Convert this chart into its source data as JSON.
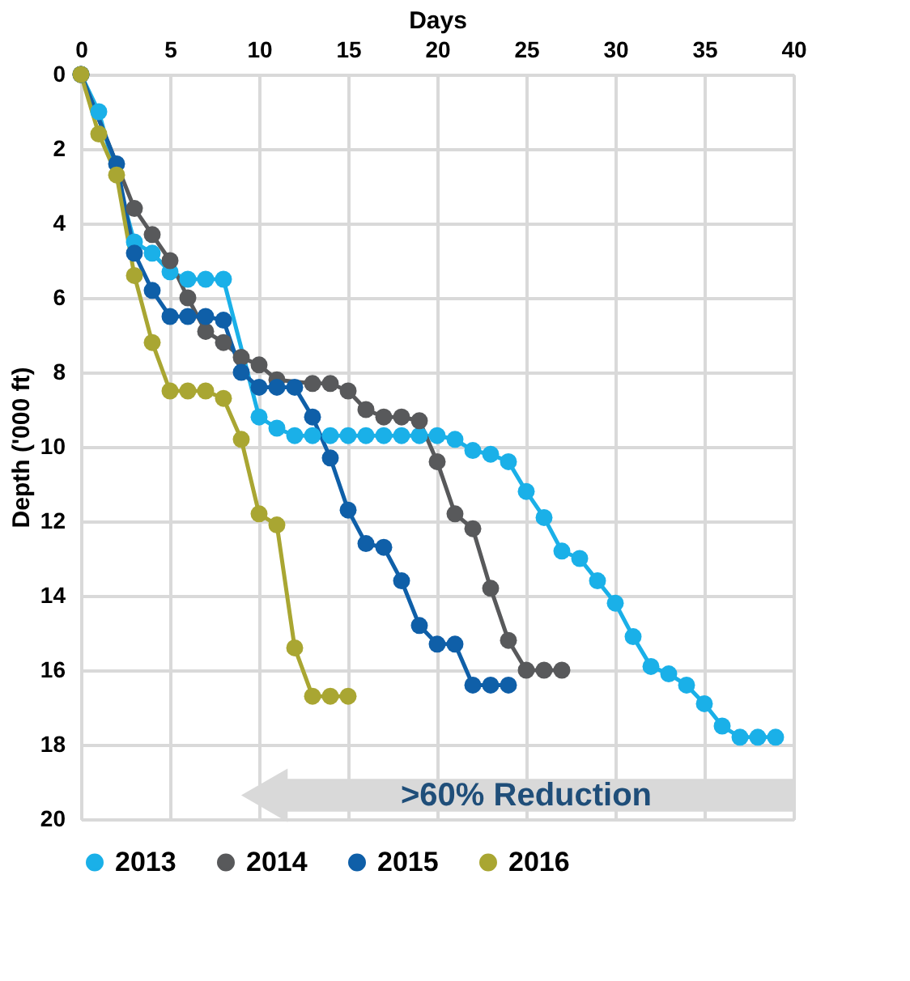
{
  "chart_data": {
    "type": "line",
    "xlabel": "Days",
    "ylabel": "Depth ('000 ft)",
    "x": [
      0,
      1,
      2,
      3,
      4,
      5,
      6,
      7,
      8,
      9,
      10,
      11,
      12,
      13,
      14,
      15,
      16,
      17,
      18,
      19,
      20,
      21,
      22,
      23,
      24,
      25,
      26,
      27,
      28,
      29,
      30,
      31,
      32,
      33,
      34,
      35,
      36,
      37,
      38,
      39
    ],
    "series": [
      {
        "name": "2013",
        "color": "#1ab0e8",
        "values": [
          0,
          1.0,
          null,
          4.5,
          4.8,
          5.3,
          5.5,
          5.5,
          5.5,
          null,
          9.2,
          9.5,
          9.7,
          9.7,
          9.7,
          9.7,
          9.7,
          9.7,
          9.7,
          9.7,
          9.7,
          9.8,
          10.1,
          10.2,
          10.4,
          11.2,
          11.9,
          12.8,
          13.0,
          13.6,
          14.2,
          15.1,
          15.9,
          16.1,
          16.4,
          16.9,
          17.5,
          17.8,
          17.8,
          17.8
        ]
      },
      {
        "name": "2014",
        "color": "#58595b",
        "x": [
          0,
          1,
          2,
          3,
          4,
          5,
          6,
          7,
          8,
          9,
          10,
          11,
          12,
          13,
          14,
          15,
          16,
          17,
          18,
          19,
          20,
          21,
          22,
          23,
          24,
          25,
          26,
          27
        ],
        "values": [
          0,
          null,
          null,
          3.6,
          4.3,
          5.0,
          6.0,
          6.9,
          7.2,
          7.6,
          7.8,
          8.2,
          null,
          8.3,
          8.3,
          8.5,
          9.0,
          9.2,
          9.2,
          9.3,
          10.4,
          11.8,
          12.2,
          13.8,
          15.2,
          16.0,
          16.0,
          16.0
        ]
      },
      {
        "name": "2015",
        "color": "#0f5fa8",
        "x": [
          0,
          1,
          2,
          3,
          4,
          5,
          6,
          7,
          8,
          9,
          10,
          11,
          12,
          13,
          14,
          15,
          16,
          17,
          18,
          19,
          20,
          21,
          22,
          23,
          24
        ],
        "values": [
          0,
          null,
          2.4,
          4.8,
          5.8,
          6.5,
          6.5,
          6.5,
          6.6,
          8.0,
          8.4,
          8.4,
          8.4,
          9.2,
          10.3,
          11.7,
          12.6,
          12.7,
          13.6,
          14.8,
          15.3,
          15.3,
          16.4,
          16.4,
          16.4
        ]
      },
      {
        "name": "2016",
        "color": "#a9a632",
        "x": [
          0,
          1,
          2,
          3,
          4,
          5,
          6,
          7,
          8,
          9,
          10,
          11,
          12,
          13,
          14,
          15
        ],
        "values": [
          0,
          1.6,
          2.7,
          5.4,
          7.2,
          8.5,
          8.5,
          8.5,
          8.7,
          9.8,
          11.8,
          12.1,
          15.4,
          16.7,
          16.7,
          16.7
        ]
      }
    ],
    "xlim": [
      0,
      40
    ],
    "xticks": [
      0,
      5,
      10,
      15,
      20,
      25,
      30,
      35,
      40
    ],
    "ylim": [
      20,
      0
    ],
    "yticks": [
      0,
      2,
      4,
      6,
      8,
      10,
      12,
      14,
      16,
      18,
      20
    ],
    "annotations": [
      ">60% Reduction"
    ],
    "grid": true,
    "legend": "bottom",
    "marker": "circle",
    "line_style": "solid"
  }
}
